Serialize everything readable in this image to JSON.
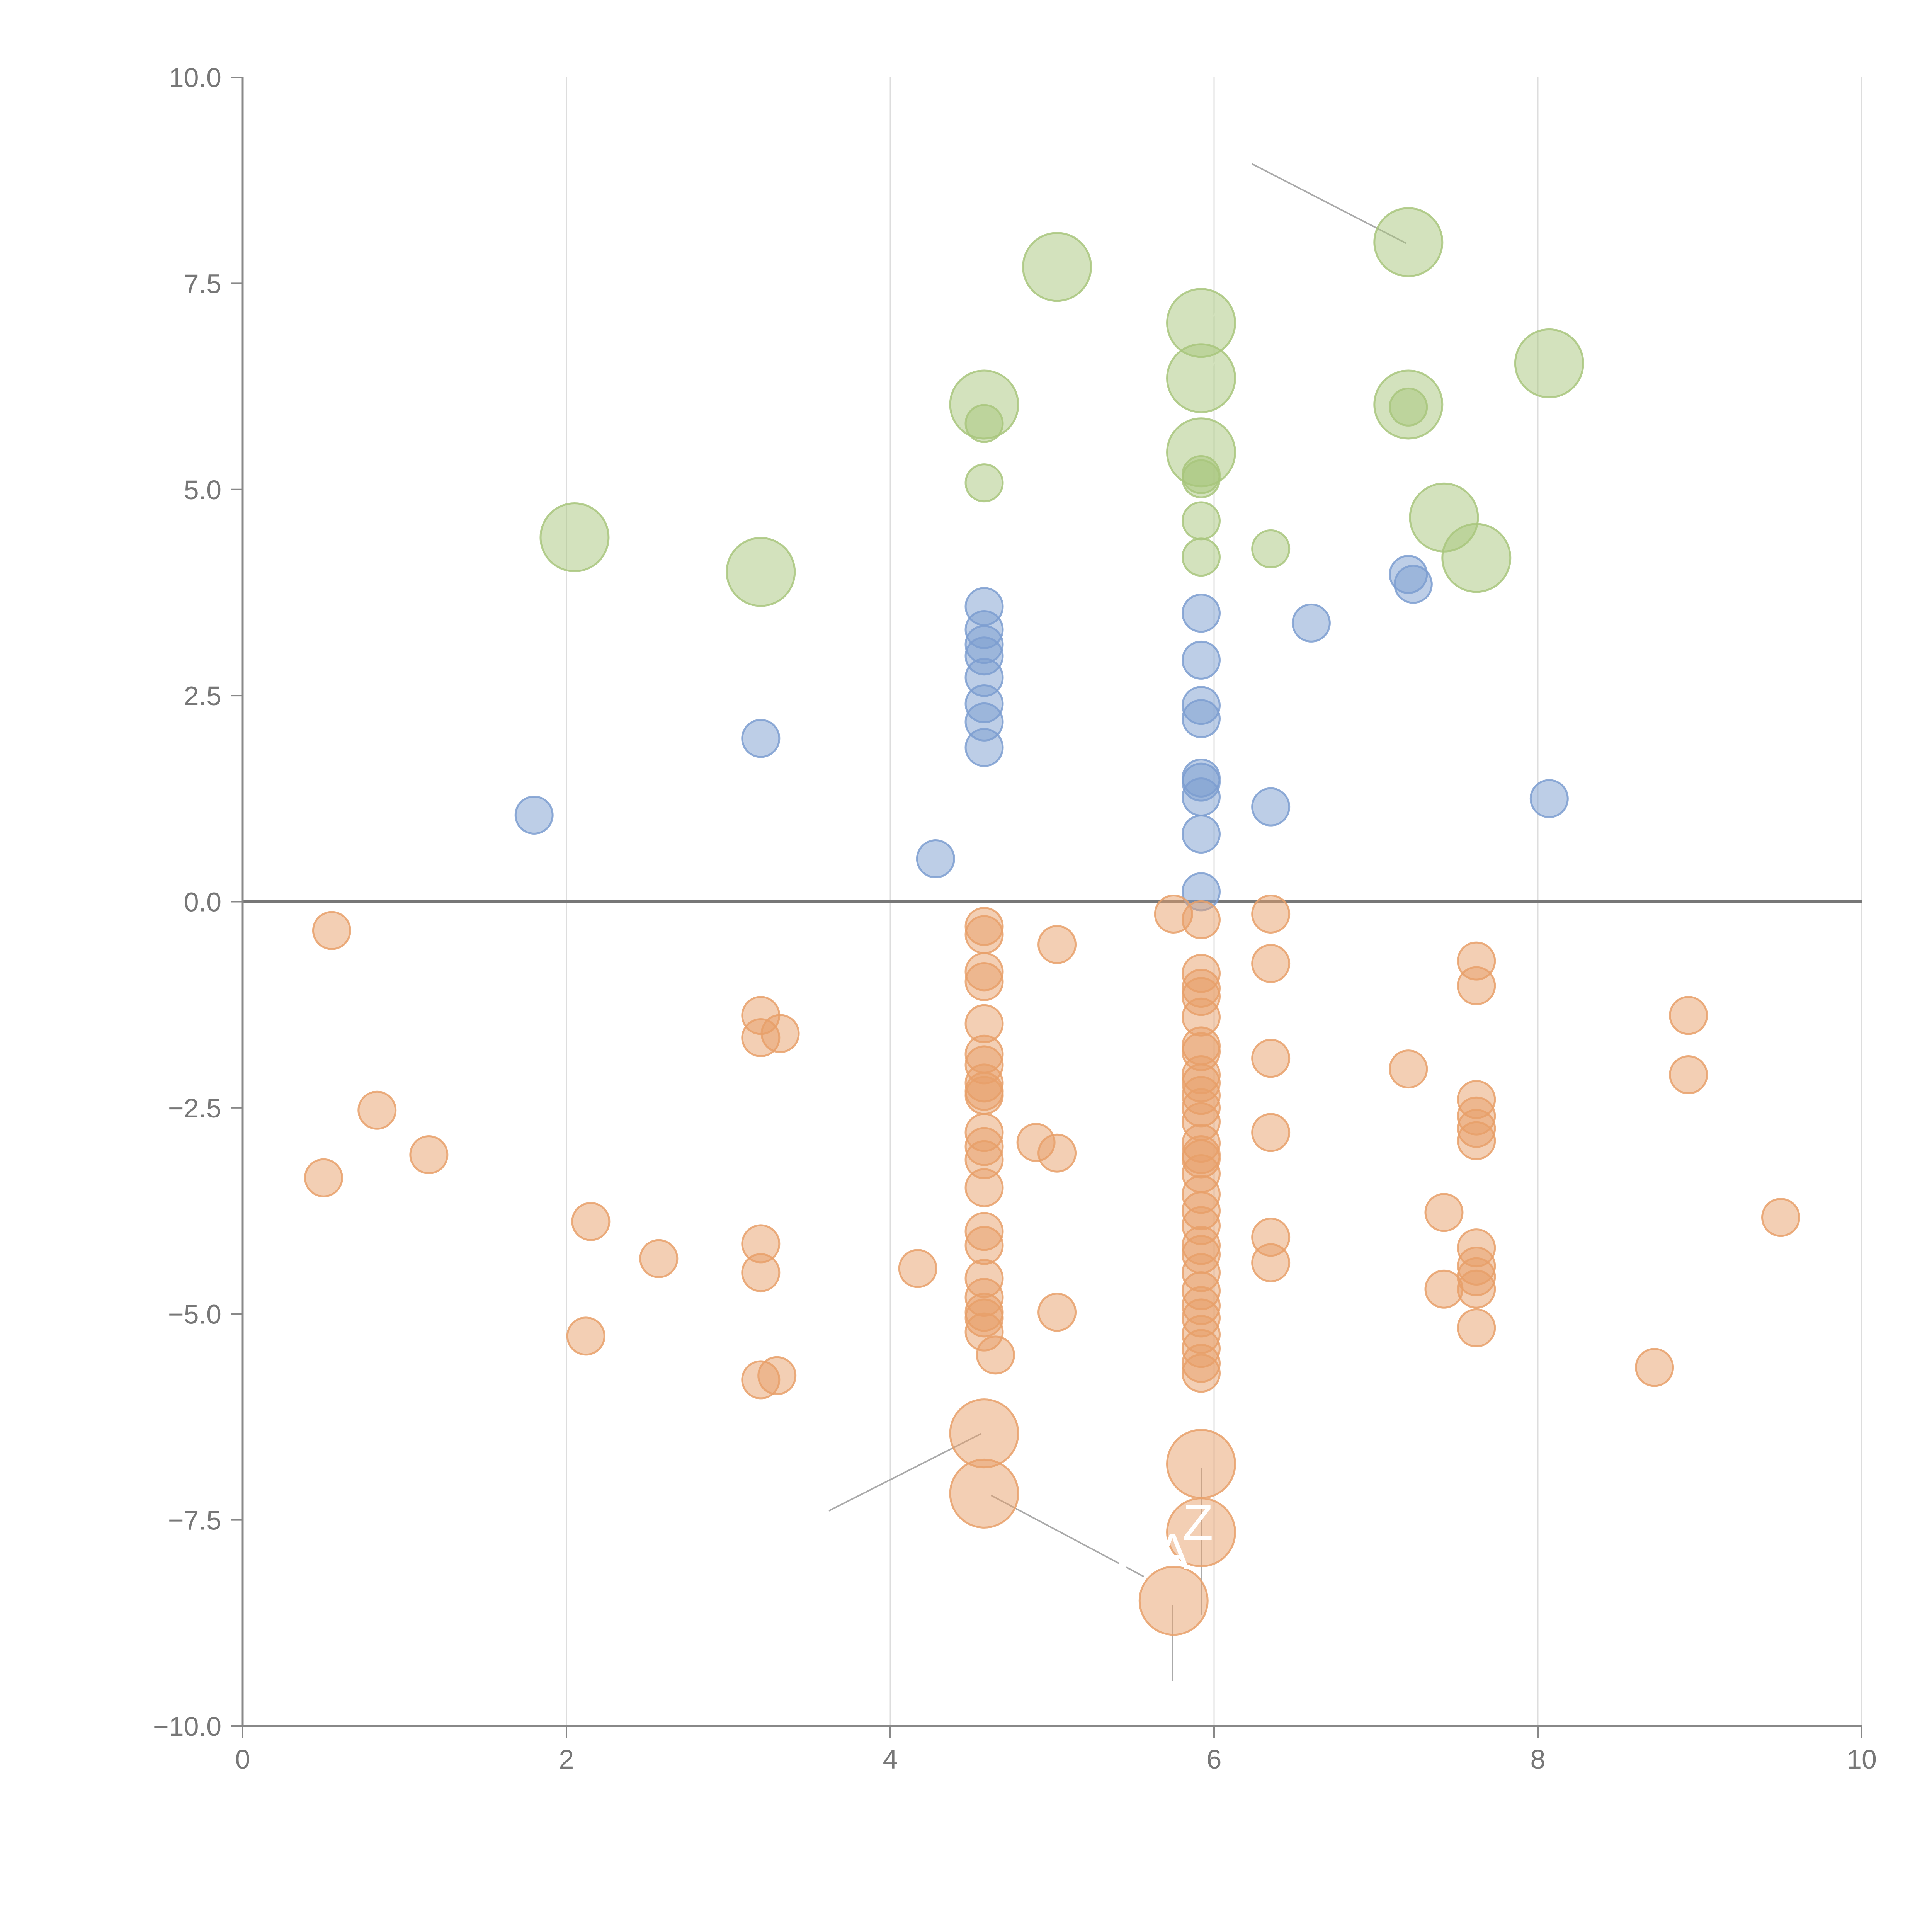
{
  "chart_data": {
    "type": "scatter",
    "title": "",
    "xlabel": "",
    "ylabel": "",
    "xlim": [
      0,
      10
    ],
    "ylim": [
      -10,
      10
    ],
    "grid": "vertical",
    "zero_line": true,
    "x_ticks": [
      "0",
      "2",
      "4",
      "6",
      "8",
      "10"
    ],
    "y_ticks": [
      "10.0",
      "7.5",
      "5.0",
      "2.5",
      "0.0",
      "−2.5",
      "−5.0",
      "−7.5",
      "−10.0"
    ],
    "colors": {
      "green": "#a8c67c",
      "blue": "#7c9ed0",
      "orange": "#e8a06a",
      "axis": "#888888",
      "grid": "#dddddd"
    },
    "annotations": [
      "WA",
      "Z"
    ],
    "series": [
      {
        "name": "green",
        "color": "#a8c67c",
        "points": [
          [
            5.03,
            7.7,
            2
          ],
          [
            5.92,
            7.02,
            2
          ],
          [
            5.92,
            6.35,
            2
          ],
          [
            5.92,
            5.45,
            2
          ],
          [
            4.58,
            6.03,
            2
          ],
          [
            7.2,
            8.0,
            2
          ],
          [
            7.2,
            6.03,
            2
          ],
          [
            8.07,
            6.53,
            2
          ],
          [
            7.42,
            4.66,
            2
          ],
          [
            7.62,
            4.17,
            2
          ],
          [
            2.05,
            4.42,
            2
          ],
          [
            3.2,
            4.0,
            2
          ],
          [
            4.58,
            5.8,
            1
          ],
          [
            4.58,
            5.08,
            1
          ],
          [
            5.92,
            5.18,
            1
          ],
          [
            5.92,
            5.13,
            1
          ],
          [
            5.92,
            4.62,
            1
          ],
          [
            5.92,
            4.18,
            1
          ],
          [
            6.35,
            4.28,
            1
          ],
          [
            7.2,
            6.0,
            1
          ]
        ]
      },
      {
        "name": "blue",
        "color": "#7c9ed0",
        "points": [
          [
            1.8,
            1.05,
            1
          ],
          [
            3.2,
            1.98,
            1
          ],
          [
            4.28,
            0.52,
            1
          ],
          [
            4.58,
            3.58,
            1
          ],
          [
            4.58,
            3.3,
            1
          ],
          [
            4.58,
            3.12,
            1
          ],
          [
            4.58,
            2.98,
            1
          ],
          [
            4.58,
            2.72,
            1
          ],
          [
            4.58,
            2.4,
            1
          ],
          [
            4.58,
            2.18,
            1
          ],
          [
            4.58,
            1.87,
            1
          ],
          [
            5.92,
            3.5,
            1
          ],
          [
            5.92,
            2.93,
            1
          ],
          [
            5.92,
            2.38,
            1
          ],
          [
            5.92,
            2.22,
            1
          ],
          [
            5.92,
            1.5,
            1
          ],
          [
            5.92,
            1.45,
            1
          ],
          [
            5.92,
            1.27,
            1
          ],
          [
            5.92,
            0.82,
            1
          ],
          [
            5.92,
            0.12,
            1
          ],
          [
            6.35,
            1.15,
            1
          ],
          [
            6.6,
            3.38,
            1
          ],
          [
            7.2,
            3.97,
            1
          ],
          [
            7.23,
            3.85,
            1
          ],
          [
            8.07,
            1.25,
            1
          ]
        ]
      },
      {
        "name": "orange",
        "color": "#e8a06a",
        "points": [
          [
            0.55,
            -0.35,
            1
          ],
          [
            0.5,
            -3.35,
            1
          ],
          [
            0.83,
            -2.53,
            1
          ],
          [
            1.15,
            -3.07,
            1
          ],
          [
            2.15,
            -3.88,
            1
          ],
          [
            2.12,
            -5.27,
            1
          ],
          [
            2.57,
            -4.33,
            1
          ],
          [
            3.2,
            -1.38,
            1
          ],
          [
            3.2,
            -1.65,
            1
          ],
          [
            3.32,
            -1.6,
            1
          ],
          [
            3.2,
            -4.15,
            1
          ],
          [
            3.2,
            -4.5,
            1
          ],
          [
            3.2,
            -5.8,
            1
          ],
          [
            3.3,
            -5.75,
            1
          ],
          [
            4.17,
            -4.45,
            1
          ],
          [
            4.58,
            -0.3,
            1
          ],
          [
            4.58,
            -0.4,
            1
          ],
          [
            4.58,
            -0.85,
            1
          ],
          [
            4.58,
            -0.97,
            1
          ],
          [
            4.58,
            -1.48,
            1
          ],
          [
            4.58,
            -1.85,
            1
          ],
          [
            4.58,
            -1.98,
            1
          ],
          [
            4.58,
            -2.2,
            1
          ],
          [
            4.58,
            -2.3,
            1
          ],
          [
            4.58,
            -2.35,
            1
          ],
          [
            4.58,
            -2.8,
            1
          ],
          [
            4.58,
            -2.97,
            1
          ],
          [
            4.58,
            -3.13,
            1
          ],
          [
            4.58,
            -3.47,
            1
          ],
          [
            4.58,
            -4.0,
            1
          ],
          [
            4.58,
            -4.17,
            1
          ],
          [
            4.58,
            -4.57,
            1
          ],
          [
            4.58,
            -4.8,
            1
          ],
          [
            4.58,
            -4.98,
            1
          ],
          [
            4.58,
            -5.05,
            1
          ],
          [
            4.58,
            -5.22,
            1
          ],
          [
            4.65,
            -5.5,
            1
          ],
          [
            4.9,
            -2.92,
            1
          ],
          [
            5.03,
            -0.52,
            1
          ],
          [
            5.03,
            -3.05,
            1
          ],
          [
            5.03,
            -4.98,
            1
          ],
          [
            5.75,
            -0.15,
            1
          ],
          [
            5.92,
            -0.22,
            1
          ],
          [
            5.92,
            -0.87,
            1
          ],
          [
            5.92,
            -1.05,
            1
          ],
          [
            5.92,
            -1.15,
            1
          ],
          [
            5.92,
            -1.4,
            1
          ],
          [
            5.92,
            -1.75,
            1
          ],
          [
            5.92,
            -1.82,
            1
          ],
          [
            5.92,
            -2.1,
            1
          ],
          [
            5.92,
            -2.2,
            1
          ],
          [
            5.92,
            -2.35,
            1
          ],
          [
            5.92,
            -2.5,
            1
          ],
          [
            5.92,
            -2.67,
            1
          ],
          [
            5.92,
            -2.93,
            1
          ],
          [
            5.92,
            -3.07,
            1
          ],
          [
            5.92,
            -3.12,
            1
          ],
          [
            5.92,
            -3.3,
            1
          ],
          [
            5.92,
            -3.55,
            1
          ],
          [
            5.92,
            -3.75,
            1
          ],
          [
            5.92,
            -3.93,
            1
          ],
          [
            5.92,
            -4.17,
            1
          ],
          [
            5.92,
            -4.28,
            1
          ],
          [
            5.92,
            -4.5,
            1
          ],
          [
            5.92,
            -4.72,
            1
          ],
          [
            5.92,
            -4.9,
            1
          ],
          [
            5.92,
            -5.05,
            1
          ],
          [
            5.92,
            -5.25,
            1
          ],
          [
            5.92,
            -5.42,
            1
          ],
          [
            5.92,
            -5.6,
            1
          ],
          [
            5.92,
            -5.72,
            1
          ],
          [
            6.35,
            -0.15,
            1
          ],
          [
            6.35,
            -0.75,
            1
          ],
          [
            6.35,
            -1.9,
            1
          ],
          [
            6.35,
            -2.8,
            1
          ],
          [
            6.35,
            -4.07,
            1
          ],
          [
            6.35,
            -4.38,
            1
          ],
          [
            7.2,
            -2.03,
            1
          ],
          [
            7.42,
            -3.77,
            1
          ],
          [
            7.42,
            -4.7,
            1
          ],
          [
            7.62,
            -0.72,
            1
          ],
          [
            7.62,
            -1.02,
            1
          ],
          [
            7.62,
            -2.4,
            1
          ],
          [
            7.62,
            -2.6,
            1
          ],
          [
            7.62,
            -2.75,
            1
          ],
          [
            7.62,
            -2.9,
            1
          ],
          [
            7.62,
            -4.2,
            1
          ],
          [
            7.62,
            -4.42,
            1
          ],
          [
            7.62,
            -4.55,
            1
          ],
          [
            7.62,
            -4.7,
            1
          ],
          [
            7.62,
            -5.17,
            1
          ],
          [
            8.72,
            -5.65,
            1
          ],
          [
            8.93,
            -1.38,
            1
          ],
          [
            8.93,
            -2.1,
            1
          ],
          [
            9.5,
            -3.83,
            1
          ],
          [
            4.58,
            -6.45,
            2
          ],
          [
            4.58,
            -7.18,
            2
          ],
          [
            5.92,
            -6.82,
            2
          ],
          [
            5.92,
            -7.65,
            2
          ],
          [
            5.75,
            -8.48,
            2
          ]
        ]
      }
    ]
  }
}
